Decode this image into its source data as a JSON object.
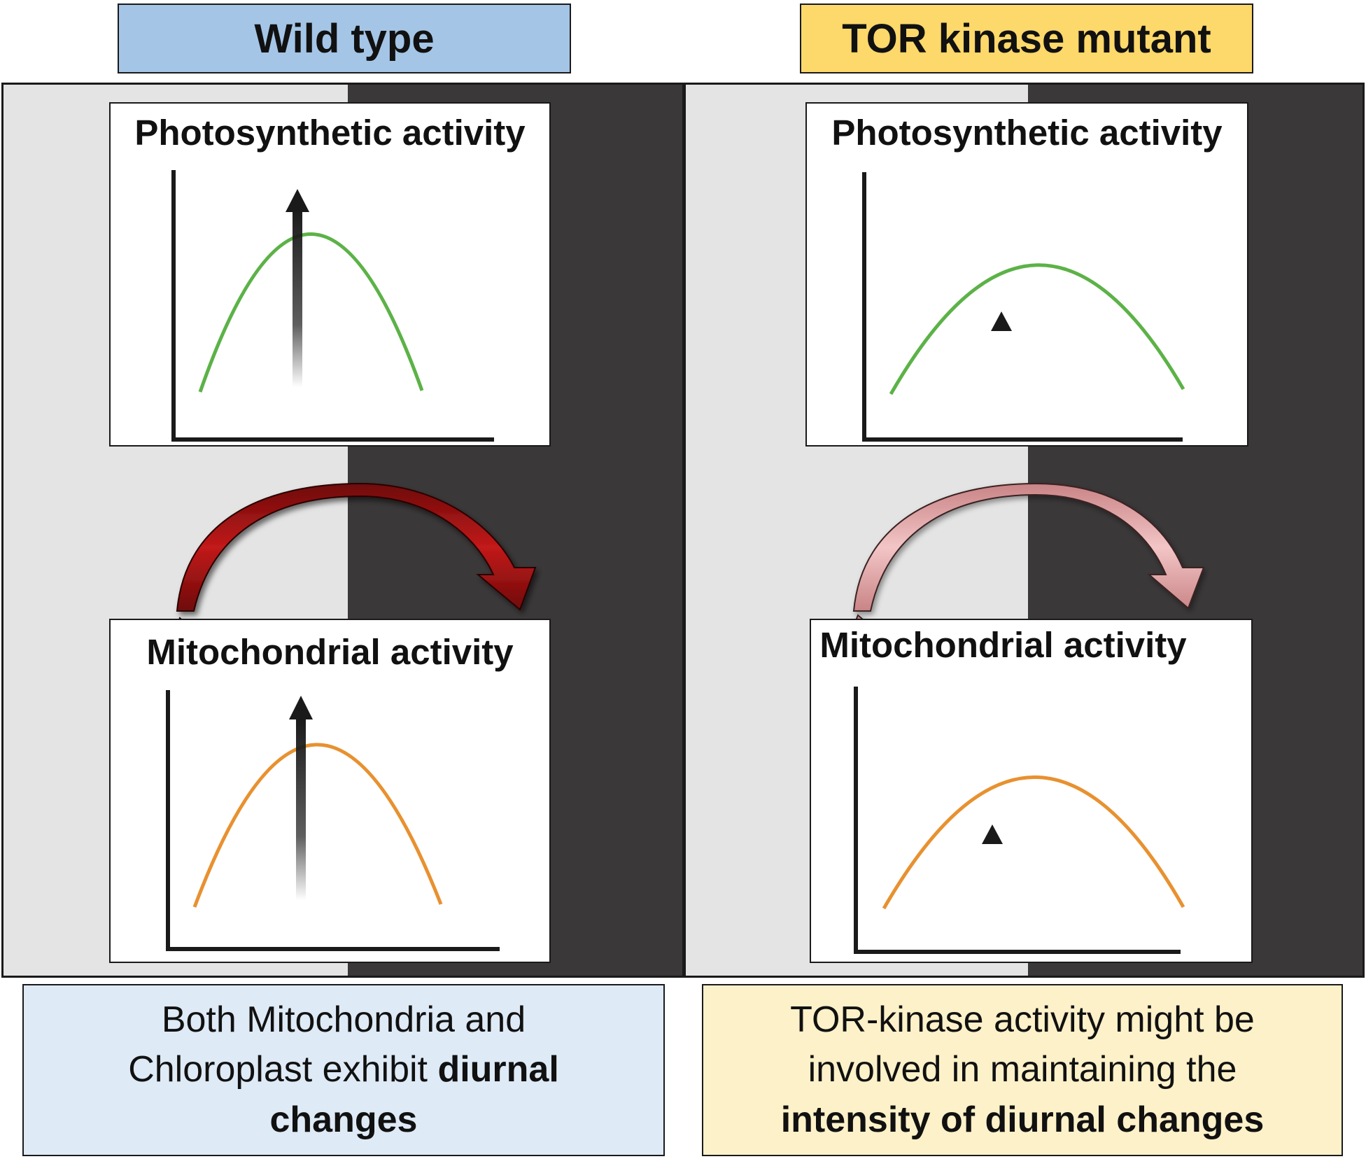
{
  "colors": {
    "wt_header_bg": "#a4c5e6",
    "mut_header_bg": "#fdd86a",
    "wt_caption_bg": "#deeaf6",
    "mut_caption_bg": "#fdf1c9",
    "day": "#e4e4e4",
    "night": "#3b3839",
    "photosynthetic_curve": "#5cb247",
    "mitochondrial_curve": "#e89130",
    "wt_cycle_arrow": "#8a0f0f",
    "mut_cycle_arrow": "#dfa0a2"
  },
  "wild_type": {
    "header": "Wild type",
    "top_chart_title": "Photosynthetic activity",
    "bottom_chart_title": "Mitochondrial activity",
    "amplitude": "high",
    "marker": "long-gradient-arrow-icon",
    "caption": {
      "line1": "Both Mitochondria and",
      "line2a": "Chloroplast exhibit ",
      "line2b": "diurnal",
      "line3": "changes"
    }
  },
  "tor_mutant": {
    "header": "TOR kinase mutant",
    "top_chart_title": "Photosynthetic activity",
    "bottom_chart_title": "Mitochondrial activity",
    "amplitude": "low",
    "marker": "small-triangle-icon",
    "caption": {
      "line1": "TOR-kinase activity might be",
      "line2": "involved in maintaining the",
      "line3": "intensity of diurnal changes"
    }
  }
}
